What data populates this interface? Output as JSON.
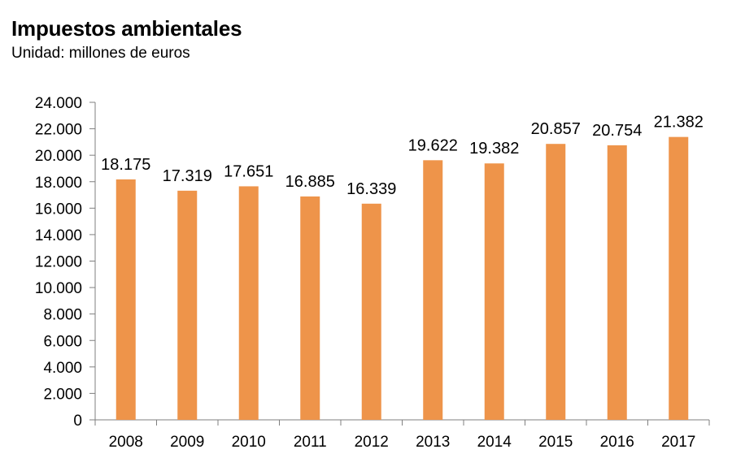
{
  "chart_title": "Impuestos ambientales",
  "chart_subtitle": "Unidad: millones de euros",
  "colors": {
    "bar": "#EE944A",
    "axis": "#7f7f7f",
    "text": "#000000"
  },
  "chart_data": {
    "type": "bar",
    "title": "Impuestos ambientales",
    "subtitle": "Unidad: millones de euros",
    "xlabel": "",
    "ylabel": "",
    "categories": [
      "2008",
      "2009",
      "2010",
      "2011",
      "2012",
      "2013",
      "2014",
      "2015",
      "2016",
      "2017"
    ],
    "values": [
      18175,
      17319,
      17651,
      16885,
      16339,
      19622,
      19382,
      20857,
      20754,
      21382
    ],
    "value_labels": [
      "18.175",
      "17.319",
      "17.651",
      "16.885",
      "16.339",
      "19.622",
      "19.382",
      "20.857",
      "20.754",
      "21.382"
    ],
    "ylim": [
      0,
      24000
    ],
    "yticks": [
      0,
      2000,
      4000,
      6000,
      8000,
      10000,
      12000,
      14000,
      16000,
      18000,
      20000,
      22000,
      24000
    ],
    "ytick_labels": [
      "0",
      "2.000",
      "4.000",
      "6.000",
      "8.000",
      "10.000",
      "12.000",
      "14.000",
      "16.000",
      "18.000",
      "20.000",
      "22.000",
      "24.000"
    ],
    "grid": false,
    "legend": "none"
  }
}
